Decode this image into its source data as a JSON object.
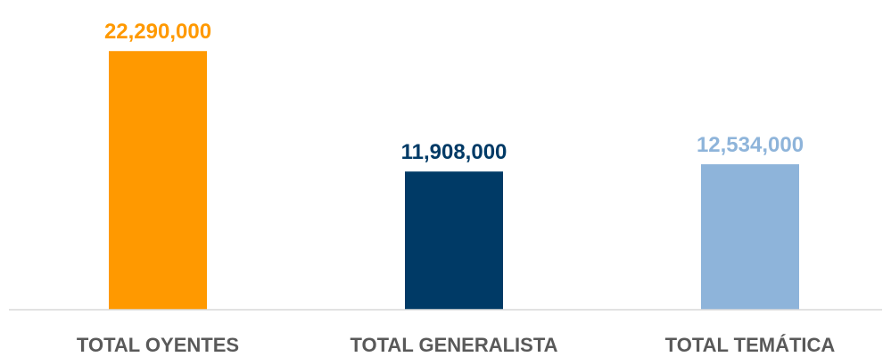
{
  "chart_data": {
    "type": "bar",
    "title": "",
    "xlabel": "",
    "ylabel": "",
    "categories": [
      "TOTAL OYENTES",
      "TOTAL GENERALISTA",
      "TOTAL TEMÁTICA"
    ],
    "values": [
      22290000,
      11908000,
      12534000
    ],
    "data_labels": [
      "22,290,000",
      "11,908,000",
      "12,534,000"
    ],
    "bar_colors": [
      "#FF9900",
      "#003A66",
      "#8EB4DA"
    ],
    "label_colors": [
      "#FF9900",
      "#003A66",
      "#8EB4DA"
    ],
    "ylim": [
      0,
      25000000
    ],
    "grid": false,
    "legend": "none",
    "baseline_color": "#D9D9D9"
  }
}
